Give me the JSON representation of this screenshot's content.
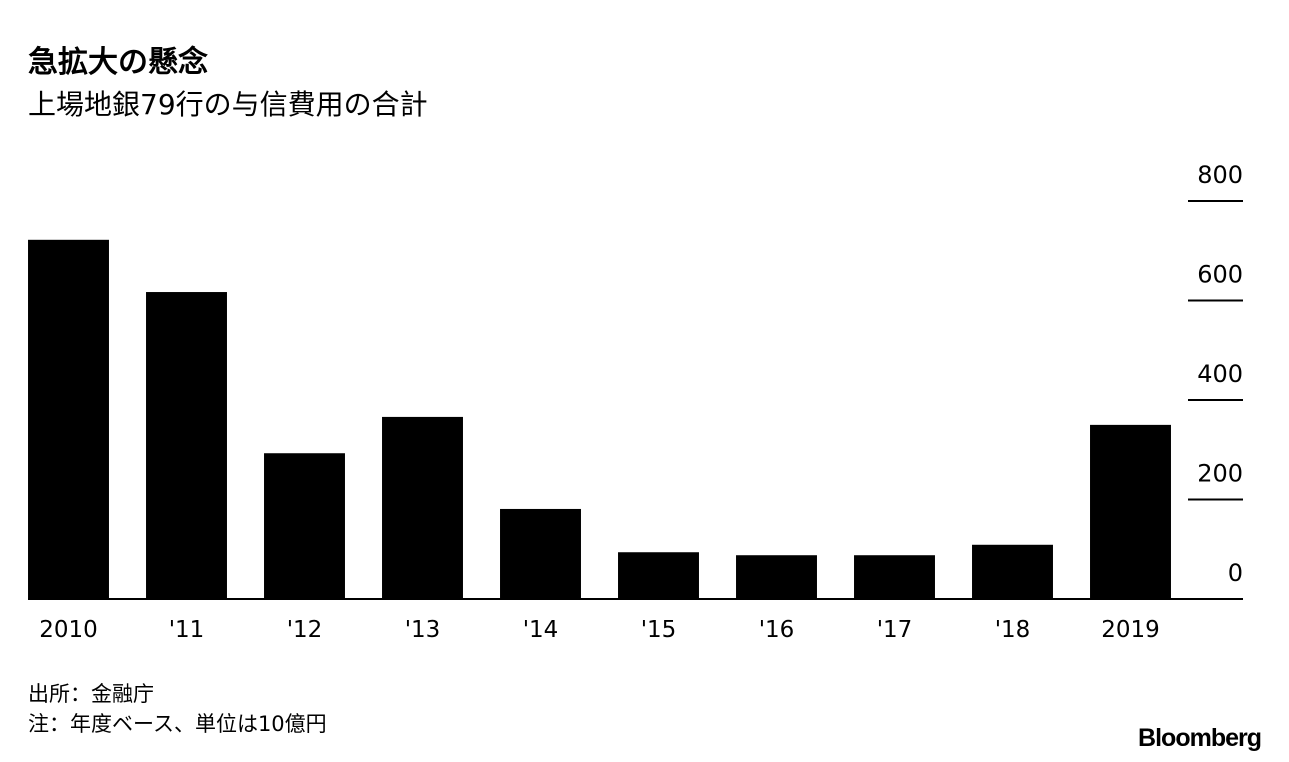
{
  "chart_data": {
    "type": "bar",
    "title": "急拡大の懸念",
    "subtitle": "上場地銀79行の与信費用の合計",
    "categories": [
      "2010",
      "'11",
      "'12",
      "'13",
      "'14",
      "'15",
      "'16",
      "'17",
      "'18",
      "2019"
    ],
    "values": [
      722,
      617,
      293,
      366,
      181,
      94,
      88,
      88,
      109,
      350
    ],
    "color": "#000000",
    "ylim": [
      0,
      800
    ],
    "yticks": [
      0,
      200,
      400,
      600,
      800
    ],
    "source": "出所：金融庁",
    "note": "注：年度ベース、単位は10億円",
    "brand": "Bloomberg"
  }
}
